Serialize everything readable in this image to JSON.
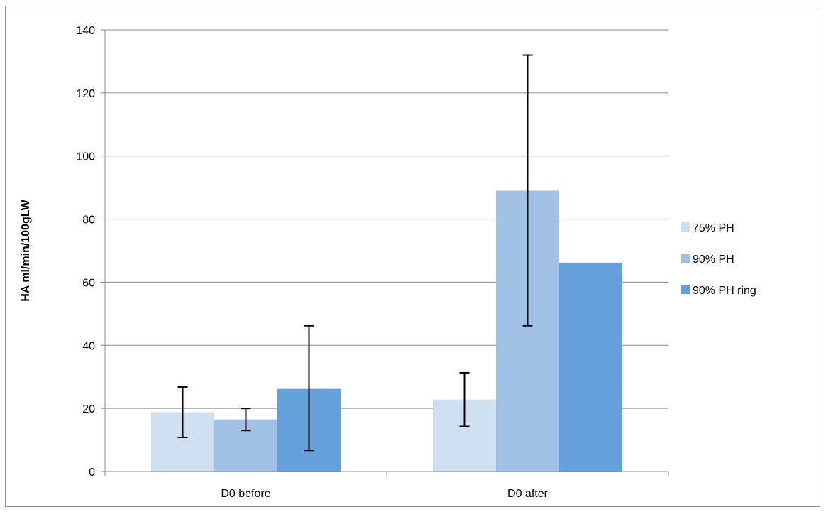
{
  "chart_data": {
    "type": "bar",
    "title": "",
    "xlabel": "",
    "ylabel": "HA ml/min/100gLW",
    "ylim": [
      0,
      140
    ],
    "yticks": [
      0,
      20,
      40,
      60,
      80,
      100,
      120,
      140
    ],
    "grid": true,
    "legend_position": "right",
    "categories": [
      "D0 before",
      "D0 after"
    ],
    "series": [
      {
        "name": "75% PH",
        "color": "#cfdff2",
        "values": [
          18.8,
          22.8
        ],
        "error_low": [
          10.8,
          14.3
        ],
        "error_high": [
          26.8,
          31.3
        ]
      },
      {
        "name": "90% PH",
        "color": "#a1c1e7",
        "values": [
          16.5,
          89
        ],
        "error_low": [
          13.0,
          46.2
        ],
        "error_high": [
          20.0,
          132
        ]
      },
      {
        "name": "90% PH ring",
        "color": "#64a0da",
        "values": [
          26.2,
          66.2
        ],
        "error_low": [
          6.7,
          null
        ],
        "error_high": [
          46.2,
          null
        ]
      }
    ]
  }
}
